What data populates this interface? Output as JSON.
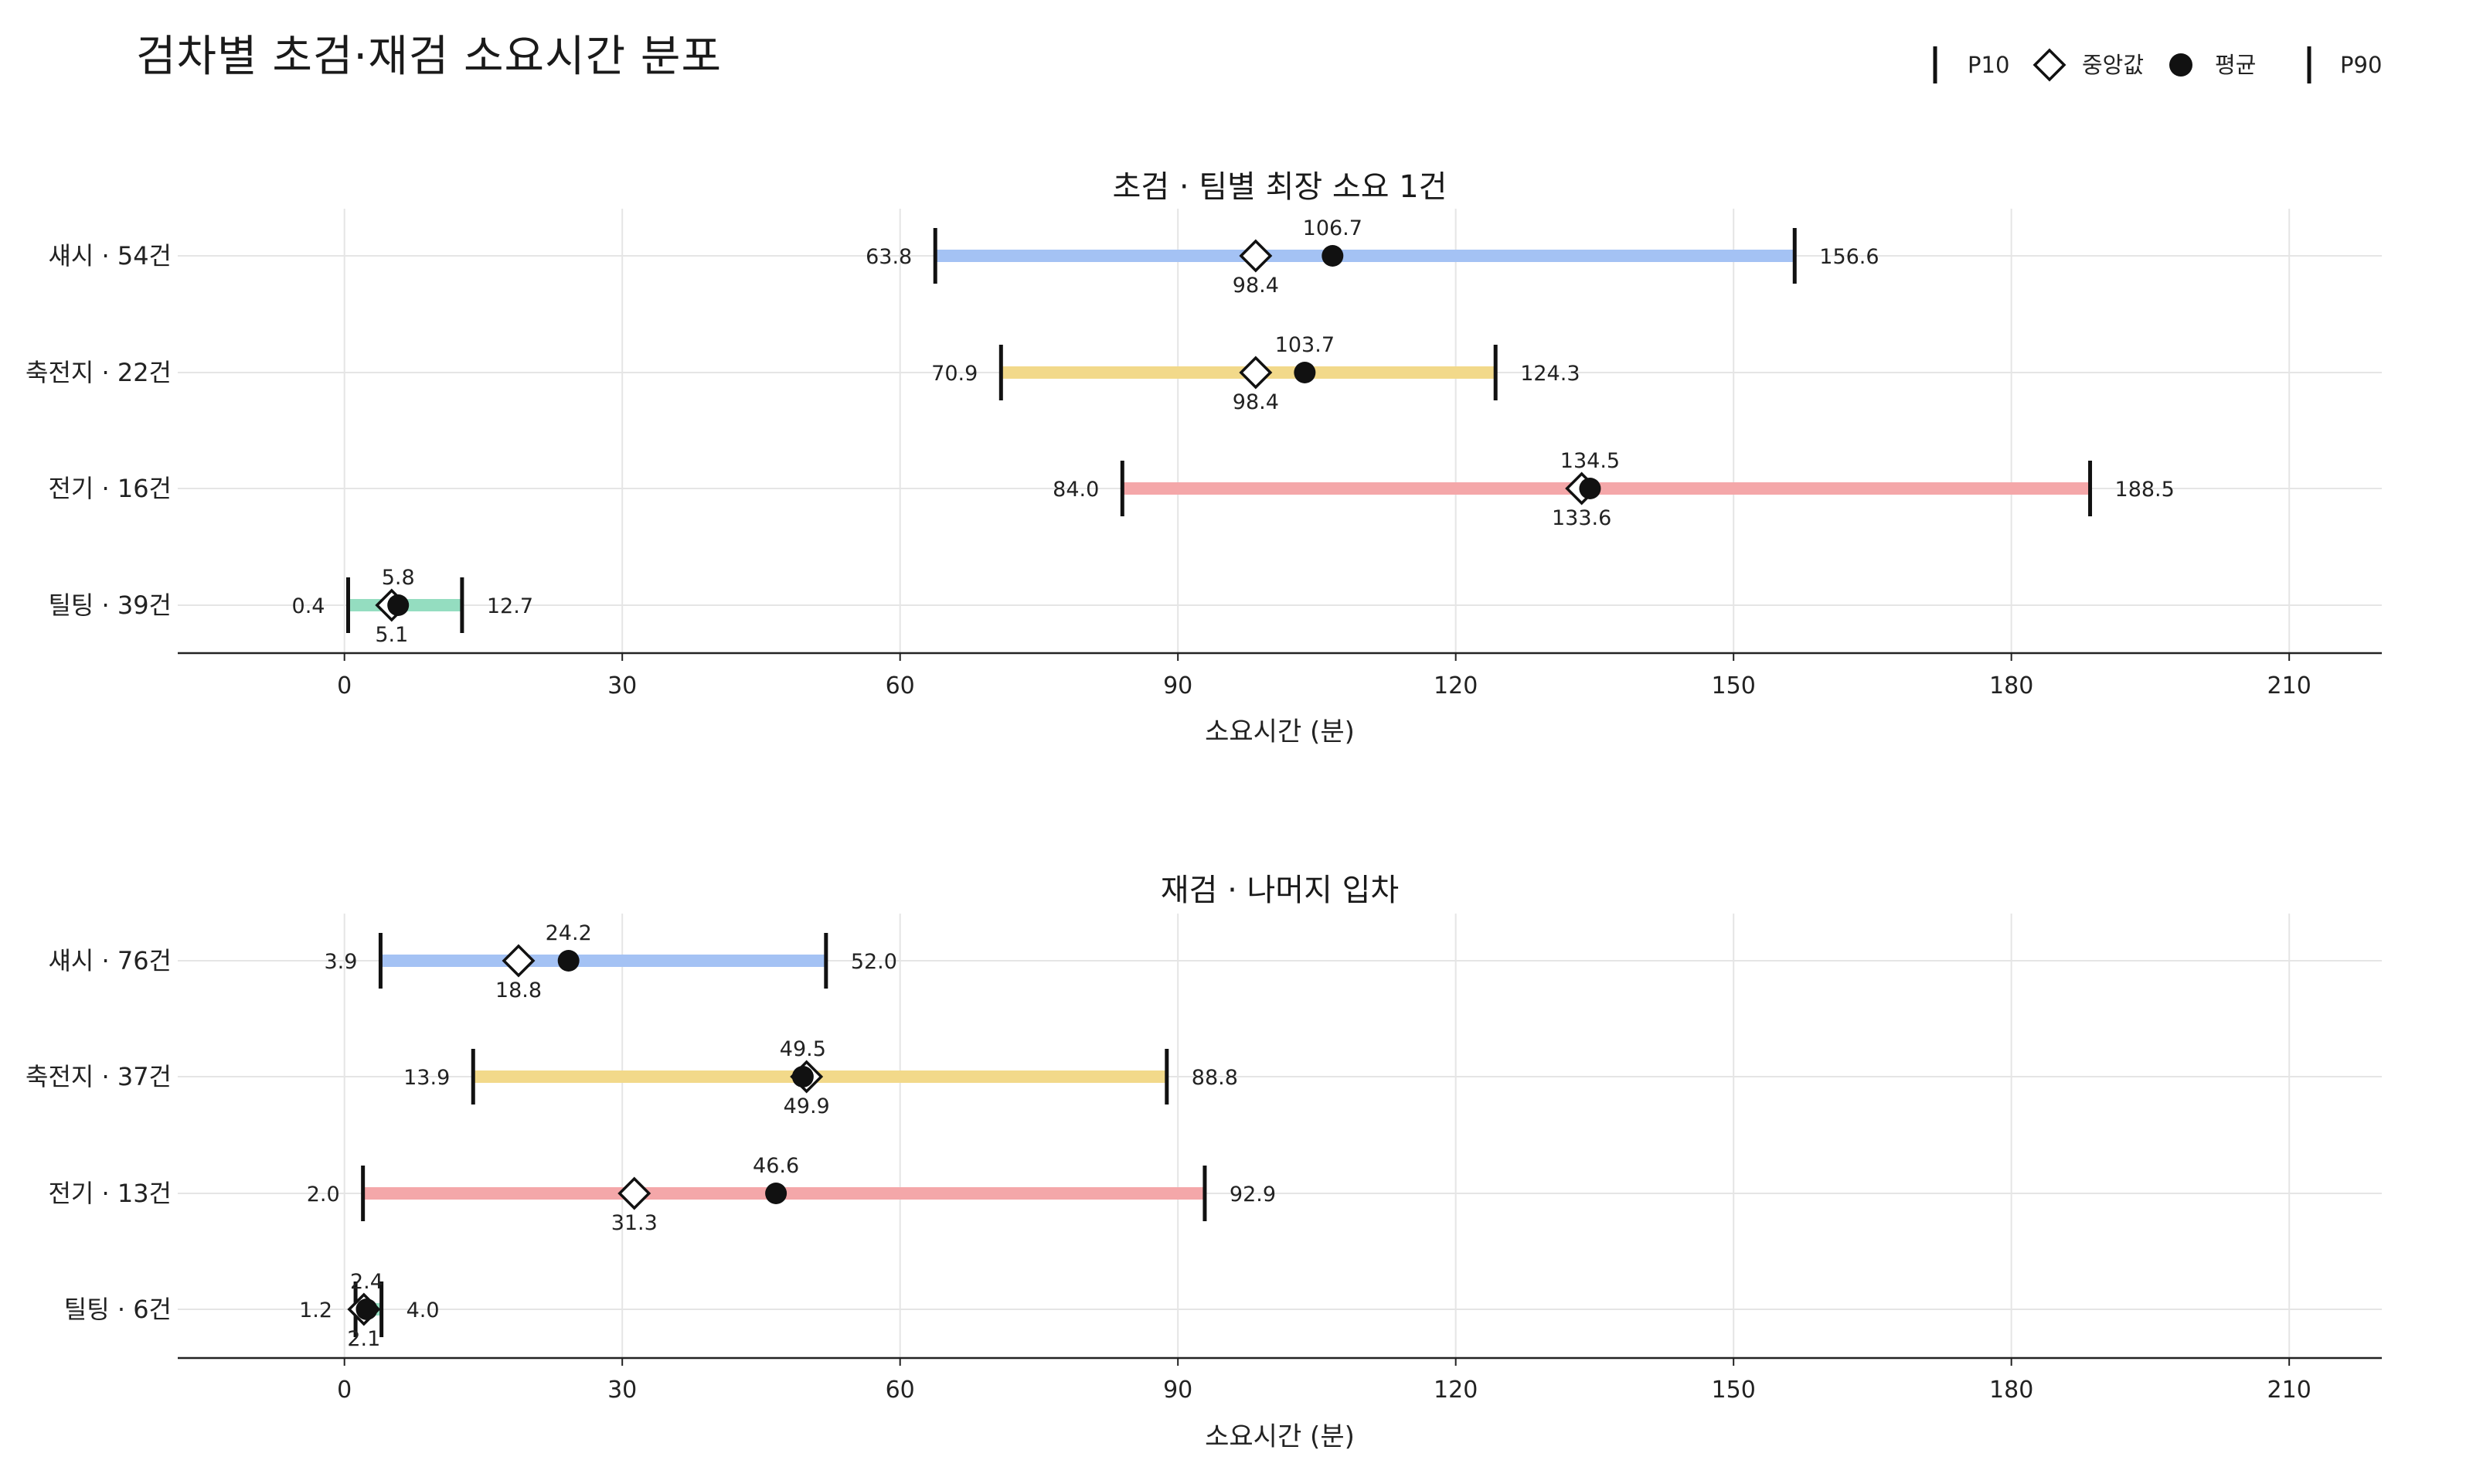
{
  "title": "검차별 초검·재검 소요시간 분포",
  "legend": {
    "items": [
      {
        "key": "p10",
        "label": "P10",
        "icon": "tick-mark-icon"
      },
      {
        "key": "median",
        "label": "중앙값",
        "icon": "diamond-icon"
      },
      {
        "key": "mean",
        "label": "평균",
        "icon": "dot-icon"
      },
      {
        "key": "p90",
        "label": "P90",
        "icon": "tick-mark-icon"
      }
    ],
    "placement": "top-right"
  },
  "chart_data": [
    {
      "type": "range-dot",
      "title": "초검 · 팀별 최장 소요 1건",
      "xlabel": "소요시간 (분)",
      "xlim": [
        -18,
        220
      ],
      "xticks": [
        0,
        30,
        60,
        90,
        120,
        150,
        180,
        210
      ],
      "grid": true,
      "categories": [
        {
          "label": "섀시 · 54건",
          "color": "#a4c2f4",
          "p10": 63.8,
          "median": 98.4,
          "mean": 106.7,
          "p90": 156.6
        },
        {
          "label": "축전지 · 22건",
          "color": "#f2d98a",
          "p10": 70.9,
          "median": 98.4,
          "mean": 103.7,
          "p90": 124.3
        },
        {
          "label": "전기 · 16건",
          "color": "#f4a7a9",
          "p10": 84.0,
          "median": 133.6,
          "mean": 134.5,
          "p90": 188.5
        },
        {
          "label": "틸팅 · 39건",
          "color": "#94ddc0",
          "p10": 0.4,
          "median": 5.1,
          "mean": 5.8,
          "p90": 12.7
        }
      ]
    },
    {
      "type": "range-dot",
      "title": "재검 · 나머지 입차",
      "xlabel": "소요시간 (분)",
      "xlim": [
        -18,
        220
      ],
      "xticks": [
        0,
        30,
        60,
        90,
        120,
        150,
        180,
        210
      ],
      "grid": true,
      "categories": [
        {
          "label": "섀시 · 76건",
          "color": "#a4c2f4",
          "p10": 3.9,
          "median": 18.8,
          "mean": 24.2,
          "p90": 52.0
        },
        {
          "label": "축전지 · 37건",
          "color": "#f2d98a",
          "p10": 13.9,
          "median": 49.9,
          "mean": 49.5,
          "p90": 88.8
        },
        {
          "label": "전기 · 13건",
          "color": "#f4a7a9",
          "p10": 2.0,
          "median": 31.3,
          "mean": 46.6,
          "p90": 92.9
        },
        {
          "label": "틸팅 · 6건",
          "color": "#94ddc0",
          "p10": 1.2,
          "median": 2.1,
          "mean": 2.4,
          "p90": 4.0
        }
      ]
    }
  ]
}
